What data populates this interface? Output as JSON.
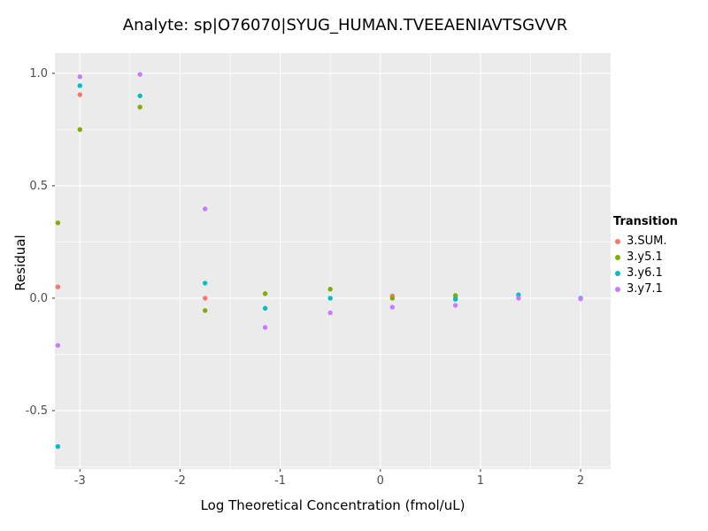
{
  "chart_data": {
    "type": "scatter",
    "title": "Analyte: sp|O76070|SYUG_HUMAN.TVEEAENIAVTSGVVR",
    "xlabel": "Log Theoretical Concentration (fmol/uL)",
    "ylabel": "Residual",
    "xlim": [
      -3.25,
      2.3
    ],
    "ylim": [
      -0.76,
      1.09
    ],
    "xticks": [
      {
        "v": -3,
        "label": "-3"
      },
      {
        "v": -2,
        "label": "-2"
      },
      {
        "v": -1,
        "label": "-1"
      },
      {
        "v": 0,
        "label": "0"
      },
      {
        "v": 1,
        "label": "1"
      },
      {
        "v": 2,
        "label": "2"
      }
    ],
    "yticks": [
      {
        "v": -0.5,
        "label": "-0.5"
      },
      {
        "v": 0.0,
        "label": "0.0"
      },
      {
        "v": 0.5,
        "label": "0.5"
      },
      {
        "v": 1.0,
        "label": "1.0"
      }
    ],
    "grid": true,
    "panel_bg": "#EBEBEB",
    "grid_color": "#FFFFFF",
    "tick_color": "#333333",
    "tick_label_color": "#4D4D4D",
    "legend": {
      "title": "Transition",
      "position": "right"
    },
    "series": [
      {
        "name": "3.SUM.",
        "color": "#F8766D",
        "points": [
          [
            -3.22,
            0.05
          ],
          [
            -3.0,
            0.905
          ],
          [
            -1.75,
            0.0
          ],
          [
            0.12,
            0.01
          ],
          [
            0.75,
            0.0
          ]
        ]
      },
      {
        "name": "3.y5.1",
        "color": "#7CAE00",
        "points": [
          [
            -3.22,
            0.335
          ],
          [
            -3.0,
            0.75
          ],
          [
            -2.4,
            0.85
          ],
          [
            -1.75,
            -0.055
          ],
          [
            -1.15,
            0.02
          ],
          [
            -0.5,
            0.04
          ],
          [
            0.12,
            0.0
          ],
          [
            0.75,
            0.012
          ]
        ]
      },
      {
        "name": "3.y6.1",
        "color": "#00BFC4",
        "points": [
          [
            -3.22,
            -0.66
          ],
          [
            -3.0,
            0.945
          ],
          [
            -2.4,
            0.9
          ],
          [
            -1.75,
            0.067
          ],
          [
            -1.15,
            -0.045
          ],
          [
            -0.5,
            0.0
          ],
          [
            0.75,
            -0.005
          ],
          [
            1.38,
            0.015
          ],
          [
            2.0,
            0.0
          ]
        ]
      },
      {
        "name": "3.y7.1",
        "color": "#C77CFF",
        "points": [
          [
            -3.22,
            -0.21
          ],
          [
            -3.0,
            0.985
          ],
          [
            -2.4,
            0.995
          ],
          [
            -1.75,
            0.397
          ],
          [
            -1.15,
            -0.13
          ],
          [
            -0.5,
            -0.065
          ],
          [
            0.12,
            -0.04
          ],
          [
            0.75,
            -0.032
          ],
          [
            1.38,
            0.0
          ],
          [
            2.0,
            -0.003
          ]
        ]
      }
    ]
  }
}
